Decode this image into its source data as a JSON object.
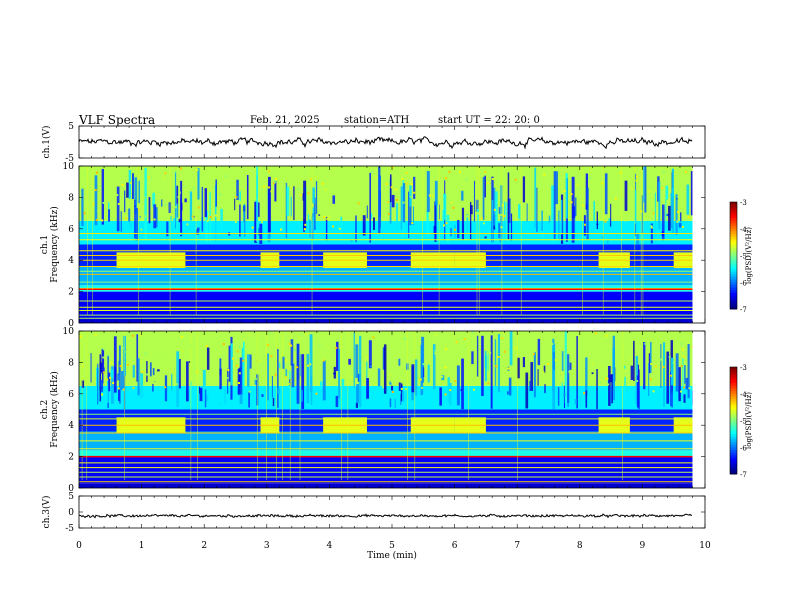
{
  "header": {
    "title": "VLF  Spectra",
    "date": "Feb. 21, 2025",
    "station": "station=ATH",
    "start": "start  UT  =   22: 20: 0"
  },
  "chart_data": [
    {
      "type": "line",
      "name": "ch1-waveform",
      "ylabel": "ch.1(V)",
      "ylim": [
        -5,
        5
      ],
      "yticks": [
        "5",
        "-5"
      ],
      "xlim": [
        0,
        10
      ],
      "data_extent_min": 9.8,
      "mean": 0
    },
    {
      "type": "heatmap",
      "name": "ch1-spectrogram",
      "ylabel_channel": "ch.1",
      "ylabel": "Frequency  (kHz)",
      "ylim": [
        0,
        10
      ],
      "yticks": [
        "0",
        "2",
        "4",
        "6",
        "8",
        "10"
      ],
      "xlim": [
        0,
        10
      ],
      "colorbar": {
        "label": "log(PSD)(V²/Hz)",
        "range": [
          -7,
          -3
        ],
        "ticks": [
          "-3",
          "-4",
          "-5",
          "-6",
          "-7"
        ]
      },
      "tone_bursts_min": [
        [
          0.6,
          1.7
        ],
        [
          2.9,
          3.2
        ],
        [
          3.9,
          4.6
        ],
        [
          5.3,
          6.0
        ],
        [
          6.0,
          6.5
        ],
        [
          8.3,
          8.8
        ],
        [
          9.5,
          9.8
        ]
      ],
      "lines_khz": [
        0.3,
        0.5,
        0.8,
        1.0,
        1.4,
        2.2,
        2.6,
        3.1,
        3.3,
        3.6,
        4.0,
        4.3,
        4.6,
        5.3,
        5.7
      ],
      "strong_band_khz": 2.15
    },
    {
      "type": "heatmap",
      "name": "ch2-spectrogram",
      "ylabel_channel": "ch.2",
      "ylabel": "Frequency  (kHz)",
      "ylim": [
        0,
        10
      ],
      "yticks": [
        "0",
        "2",
        "4",
        "6",
        "8",
        "10"
      ],
      "xlim": [
        0,
        10
      ],
      "colorbar": {
        "label": "log(PSD)(V²/Hz)",
        "range": [
          -7,
          -3
        ],
        "ticks": [
          "-3",
          "-4",
          "-5",
          "-6",
          "-7"
        ]
      },
      "lines_khz": [
        0.4,
        0.7,
        1.0,
        1.3,
        1.6,
        2.0,
        2.5,
        3.0,
        3.5,
        4.0,
        4.4,
        4.7
      ],
      "strong_band_khz": 2.0
    },
    {
      "type": "line",
      "name": "ch3-waveform",
      "ylabel": "ch.3(V)",
      "ylim": [
        -5,
        5
      ],
      "yticks": [
        "5",
        "0",
        "-5"
      ],
      "xlim": [
        0,
        10
      ],
      "data_extent_min": 9.8,
      "mean": -1.2
    }
  ],
  "xaxis": {
    "label": "Time  (min)",
    "ticks": [
      "0",
      "1",
      "2",
      "3",
      "4",
      "5",
      "6",
      "7",
      "8",
      "9",
      "10"
    ]
  }
}
